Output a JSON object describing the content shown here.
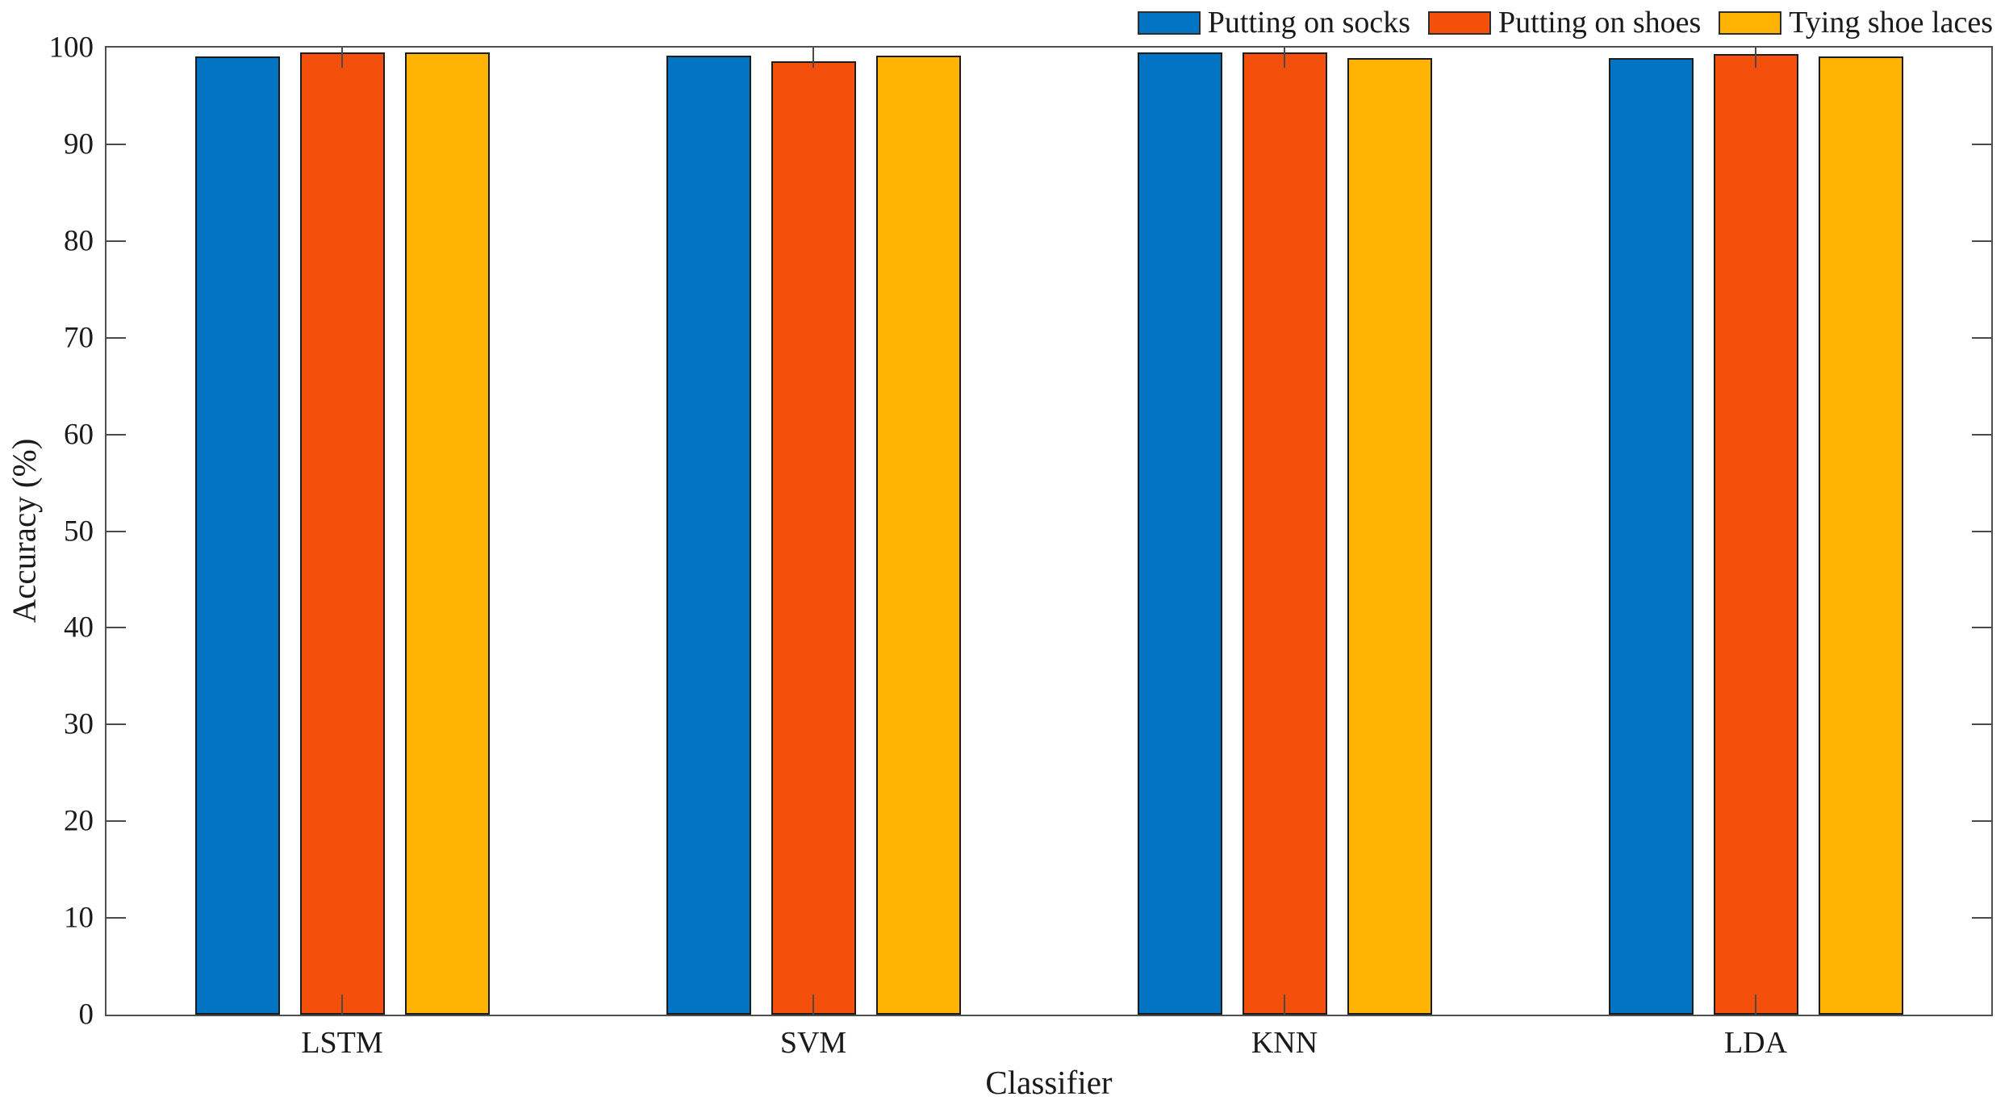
{
  "chart_data": {
    "type": "bar",
    "title": "",
    "xlabel": "Classifier",
    "ylabel": "Accuracy (%)",
    "categories": [
      "LSTM",
      "SVM",
      "KNN",
      "LDA"
    ],
    "series": [
      {
        "name": "Putting on socks",
        "color": "#0374C4",
        "values": [
          99.1,
          99.2,
          99.5,
          98.9
        ]
      },
      {
        "name": "Putting on shoes",
        "color": "#F4500C",
        "values": [
          99.5,
          98.6,
          99.5,
          99.3
        ]
      },
      {
        "name": "Tying shoe laces",
        "color": "#FFB405",
        "values": [
          99.5,
          99.2,
          98.9,
          99.1
        ]
      }
    ],
    "ylim": [
      0,
      100
    ],
    "ytick_step": 10,
    "yticks": [
      0,
      10,
      20,
      30,
      40,
      50,
      60,
      70,
      80,
      90,
      100
    ],
    "grid": false,
    "legend_position": "top-right",
    "legend_orientation": "horizontal",
    "axis_color": "#4f4f4f",
    "bar_edge_color": "#1c1c1c",
    "tick_direction": "in"
  }
}
